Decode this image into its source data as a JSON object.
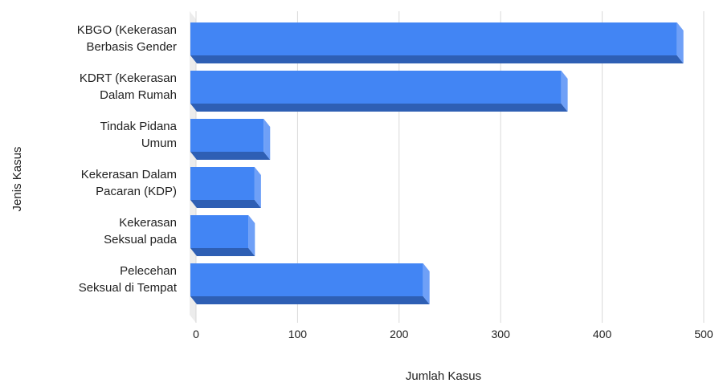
{
  "chart_data": {
    "type": "bar",
    "orientation": "horizontal",
    "style": "3d",
    "categories": [
      [
        "KBGO (Kekerasan",
        "Berbasis Gender"
      ],
      [
        "KDRT (Kekerasan",
        "Dalam Rumah"
      ],
      [
        "Tindak Pidana",
        "Umum"
      ],
      [
        "Kekerasan Dalam",
        "Pacaran (KDP)"
      ],
      [
        "Kekerasan",
        "Seksual pada"
      ],
      [
        "Pelecehan",
        "Seksual di Tempat"
      ]
    ],
    "values": [
      480,
      366,
      73,
      64,
      58,
      230
    ],
    "xlabel": "Jumlah Kasus",
    "ylabel": "Jenis Kasus",
    "xlim": [
      0,
      500
    ],
    "xticks": [
      0,
      100,
      200,
      300,
      400,
      500
    ],
    "grid": true,
    "colors": {
      "bar_front": "#4285f4",
      "bar_top": "#2e5fb4",
      "bar_side": "#6fa0f7",
      "grid": "#d9d9d9",
      "wall": "#ececec"
    }
  }
}
